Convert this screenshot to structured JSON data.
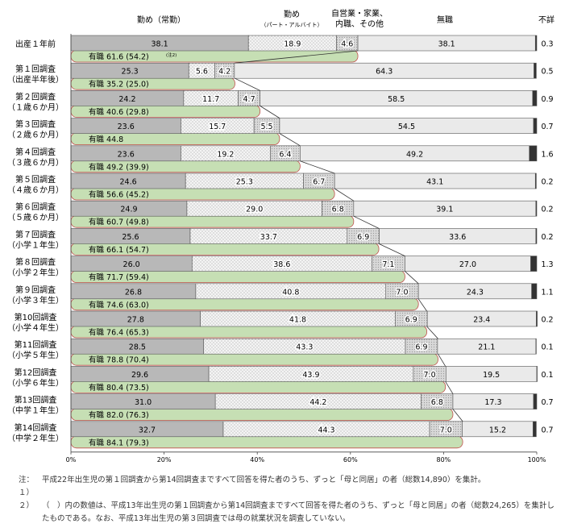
{
  "chart_data": {
    "type": "bar",
    "orientation": "horizontal",
    "stacked": true,
    "xlim": [
      0,
      100
    ],
    "x_ticks": [
      "0%",
      "20%",
      "40%",
      "60%",
      "80%",
      "100%"
    ],
    "header_labels": {
      "fulltime": "勤め（常勤）",
      "parttime": "勤め",
      "parttime_sub": "（パート・アルバイト）",
      "self1": "自営業・家業、",
      "self2": "内職、その他",
      "unemployed": "無職",
      "unknown": "不詳"
    },
    "employed_label": "有職",
    "note_marker": "(注2)",
    "colors": {
      "fulltime": "#b8b8b8",
      "parttime": "#f4f4f4",
      "self": "#d8d8d8",
      "unemployed": "#eaeaea",
      "unknown": "#333333",
      "employed_bar": "#c6dfb4",
      "employed_edge": "#c0504d"
    },
    "categories": [
      {
        "line1": "出産１年前",
        "line2": ""
      },
      {
        "line1": "第１回調査",
        "line2": "（出産半年後）"
      },
      {
        "line1": "第２回調査",
        "line2": "（１歳６か月）"
      },
      {
        "line1": "第３回調査",
        "line2": "（２歳６か月）"
      },
      {
        "line1": "第４回調査",
        "line2": "（３歳６か月）"
      },
      {
        "line1": "第５回調査",
        "line2": "（４歳６か月）"
      },
      {
        "line1": "第６回調査",
        "line2": "（５歳６か月）"
      },
      {
        "line1": "第７回調査",
        "line2": "（小学１年生）"
      },
      {
        "line1": "第８回調査",
        "line2": "（小学２年生）"
      },
      {
        "line1": "第９回調査",
        "line2": "（小学３年生）"
      },
      {
        "line1": "第10回調査",
        "line2": "（小学４年生）"
      },
      {
        "line1": "第11回調査",
        "line2": "（小学５年生）"
      },
      {
        "line1": "第12回調査",
        "line2": "（小学６年生）"
      },
      {
        "line1": "第13回調査",
        "line2": "（中学１年生）"
      },
      {
        "line1": "第14回調査",
        "line2": "（中学２年生）"
      }
    ],
    "series": [
      {
        "key": "fulltime",
        "values": [
          38.1,
          25.3,
          24.2,
          23.6,
          23.6,
          24.6,
          24.9,
          25.6,
          26.0,
          26.8,
          27.8,
          28.5,
          29.6,
          31.0,
          32.7
        ]
      },
      {
        "key": "parttime",
        "values": [
          18.9,
          5.6,
          11.7,
          15.7,
          19.2,
          25.3,
          29.0,
          33.7,
          38.6,
          40.8,
          41.8,
          43.3,
          43.9,
          44.2,
          44.3
        ]
      },
      {
        "key": "self",
        "values": [
          4.6,
          4.2,
          4.7,
          5.5,
          6.4,
          6.7,
          6.8,
          6.9,
          7.1,
          7.0,
          6.9,
          6.9,
          7.0,
          6.8,
          7.0
        ]
      },
      {
        "key": "unemployed",
        "values": [
          38.1,
          64.3,
          58.5,
          54.5,
          49.2,
          43.1,
          39.1,
          33.6,
          27.0,
          24.3,
          23.4,
          21.1,
          19.5,
          17.3,
          15.2
        ]
      },
      {
        "key": "unknown",
        "values": [
          0.3,
          0.5,
          0.9,
          0.7,
          1.6,
          0.2,
          0.2,
          0.2,
          1.3,
          1.1,
          0.2,
          0.1,
          0.1,
          0.7,
          0.7
        ]
      }
    ],
    "employed_values": [
      61.6,
      35.2,
      40.6,
      44.8,
      49.2,
      56.6,
      60.7,
      66.1,
      71.7,
      74.6,
      76.4,
      78.8,
      80.4,
      82.0,
      84.1
    ],
    "employed_labels": [
      "61.6",
      "35.2",
      "40.6",
      "44.8",
      "49.2",
      "56.6",
      "60.7",
      "66.1",
      "71.7",
      "74.6",
      "76.4",
      "78.8",
      "80.4",
      "82.0",
      "84.1"
    ],
    "employed_prev_labels": [
      "(54.2)",
      "(25.0)",
      "(29.8)",
      "",
      "(39.9)",
      "(45.2)",
      "(49.8)",
      "(54.7)",
      "(59.4)",
      "(63.0)",
      "(65.3)",
      "(70.4)",
      "(73.5)",
      "(76.3)",
      "(79.3)"
    ]
  },
  "notes": {
    "n1_label": "注：１）",
    "n1_text": "平成22年出生児の第１回調査から第14回調査まですべて回答を得た者のうち、ずっと「母と同居」の者（総数14,890）を集計。",
    "n2_label": "２）",
    "n2_text": "（　）内の数値は、平成13年出生児の第１回調査から第14回調査まですべて回答を得た者のうち、ずっと「母と同居」の者（総数24,265）を集計したものである。なお、平成13年出生児の第３回調査では母の就業状況を調査していない。"
  }
}
